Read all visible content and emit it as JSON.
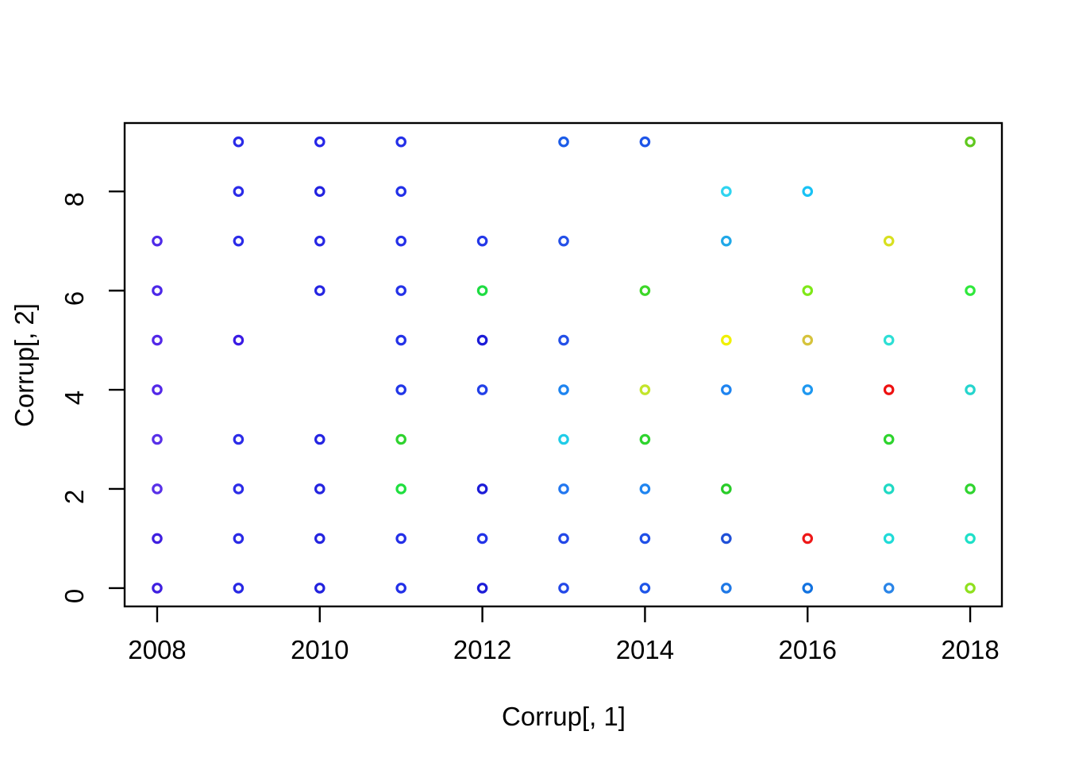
{
  "chart_data": {
    "type": "scatter",
    "title": "",
    "xlabel": "Corrup[, 1]",
    "ylabel": "Corrup[, 2]",
    "marker": "open-circle",
    "grid": "off",
    "legend": "none",
    "xlim": [
      2007.6,
      2018.39
    ],
    "ylim": [
      -0.37,
      9.38
    ],
    "x_ticks": [
      2008,
      2010,
      2012,
      2014,
      2016,
      2018
    ],
    "y_ticks": [
      0,
      2,
      4,
      6,
      8
    ],
    "points": [
      {
        "x": 2009,
        "y": 9,
        "color": "#2B2BE8"
      },
      {
        "x": 2010,
        "y": 9,
        "color": "#2626E8"
      },
      {
        "x": 2011,
        "y": 9,
        "color": "#2430E8"
      },
      {
        "x": 2013,
        "y": 9,
        "color": "#1C5CE8"
      },
      {
        "x": 2014,
        "y": 9,
        "color": "#1E55E8"
      },
      {
        "x": 2018,
        "y": 9,
        "color": "#5FC81E"
      },
      {
        "x": 2009,
        "y": 8,
        "color": "#2B2BE8"
      },
      {
        "x": 2010,
        "y": 8,
        "color": "#2222E0"
      },
      {
        "x": 2011,
        "y": 8,
        "color": "#2230E8"
      },
      {
        "x": 2015,
        "y": 8,
        "color": "#2FD4F0"
      },
      {
        "x": 2016,
        "y": 8,
        "color": "#18C2F5"
      },
      {
        "x": 2008,
        "y": 7,
        "color": "#4F2BE8"
      },
      {
        "x": 2009,
        "y": 7,
        "color": "#2B2BE8"
      },
      {
        "x": 2010,
        "y": 7,
        "color": "#2727E4"
      },
      {
        "x": 2011,
        "y": 7,
        "color": "#2530E8"
      },
      {
        "x": 2012,
        "y": 7,
        "color": "#2438E8"
      },
      {
        "x": 2013,
        "y": 7,
        "color": "#2450E8"
      },
      {
        "x": 2015,
        "y": 7,
        "color": "#20A8E8"
      },
      {
        "x": 2017,
        "y": 7,
        "color": "#D8E020"
      },
      {
        "x": 2008,
        "y": 6,
        "color": "#4C28E8"
      },
      {
        "x": 2010,
        "y": 6,
        "color": "#2525E2"
      },
      {
        "x": 2011,
        "y": 6,
        "color": "#2432E8"
      },
      {
        "x": 2012,
        "y": 6,
        "color": "#1EDC42"
      },
      {
        "x": 2014,
        "y": 6,
        "color": "#3CD728"
      },
      {
        "x": 2016,
        "y": 6,
        "color": "#7FE818"
      },
      {
        "x": 2018,
        "y": 6,
        "color": "#2FE83C"
      },
      {
        "x": 2008,
        "y": 5,
        "color": "#5328E8"
      },
      {
        "x": 2009,
        "y": 5,
        "color": "#3A1BE4"
      },
      {
        "x": 2011,
        "y": 5,
        "color": "#2432E8"
      },
      {
        "x": 2012,
        "y": 5,
        "color": "#1C1CD8"
      },
      {
        "x": 2013,
        "y": 5,
        "color": "#2450E8"
      },
      {
        "x": 2015,
        "y": 5,
        "color": "#F0F000"
      },
      {
        "x": 2016,
        "y": 5,
        "color": "#D6C33C"
      },
      {
        "x": 2017,
        "y": 5,
        "color": "#2EDFD5"
      },
      {
        "x": 2008,
        "y": 4,
        "color": "#5328E8"
      },
      {
        "x": 2011,
        "y": 4,
        "color": "#2136E8"
      },
      {
        "x": 2012,
        "y": 4,
        "color": "#2240E8"
      },
      {
        "x": 2013,
        "y": 4,
        "color": "#1E84F0"
      },
      {
        "x": 2014,
        "y": 4,
        "color": "#C3E52A"
      },
      {
        "x": 2015,
        "y": 4,
        "color": "#1E84F0"
      },
      {
        "x": 2016,
        "y": 4,
        "color": "#1E98F0"
      },
      {
        "x": 2017,
        "y": 4,
        "color": "#EE1111"
      },
      {
        "x": 2018,
        "y": 4,
        "color": "#25D5CD"
      },
      {
        "x": 2008,
        "y": 3,
        "color": "#5830E8"
      },
      {
        "x": 2009,
        "y": 3,
        "color": "#2C2CE8"
      },
      {
        "x": 2010,
        "y": 3,
        "color": "#2525E2"
      },
      {
        "x": 2011,
        "y": 3,
        "color": "#2FD32F"
      },
      {
        "x": 2013,
        "y": 3,
        "color": "#20CCE8"
      },
      {
        "x": 2014,
        "y": 3,
        "color": "#2ED42E"
      },
      {
        "x": 2017,
        "y": 3,
        "color": "#2ED42E"
      },
      {
        "x": 2008,
        "y": 2,
        "color": "#5830E8"
      },
      {
        "x": 2009,
        "y": 2,
        "color": "#2C2CE8"
      },
      {
        "x": 2010,
        "y": 2,
        "color": "#2424E0"
      },
      {
        "x": 2011,
        "y": 2,
        "color": "#1FDF3F"
      },
      {
        "x": 2012,
        "y": 2,
        "color": "#1C1CD8"
      },
      {
        "x": 2013,
        "y": 2,
        "color": "#2277F0"
      },
      {
        "x": 2014,
        "y": 2,
        "color": "#2085F0"
      },
      {
        "x": 2015,
        "y": 2,
        "color": "#28CC28"
      },
      {
        "x": 2017,
        "y": 2,
        "color": "#20D9C4"
      },
      {
        "x": 2018,
        "y": 2,
        "color": "#2FD42F"
      },
      {
        "x": 2008,
        "y": 1,
        "color": "#3F1FE0"
      },
      {
        "x": 2009,
        "y": 1,
        "color": "#2A2AE6"
      },
      {
        "x": 2010,
        "y": 1,
        "color": "#2424E0"
      },
      {
        "x": 2011,
        "y": 1,
        "color": "#2430E8"
      },
      {
        "x": 2012,
        "y": 1,
        "color": "#2233E8"
      },
      {
        "x": 2013,
        "y": 1,
        "color": "#2348E8"
      },
      {
        "x": 2014,
        "y": 1,
        "color": "#2050E8"
      },
      {
        "x": 2015,
        "y": 1,
        "color": "#2050D8"
      },
      {
        "x": 2016,
        "y": 1,
        "color": "#EE1818"
      },
      {
        "x": 2017,
        "y": 1,
        "color": "#20DBD8"
      },
      {
        "x": 2018,
        "y": 1,
        "color": "#1EE0C8"
      },
      {
        "x": 2008,
        "y": 0,
        "color": "#3F1FE0"
      },
      {
        "x": 2009,
        "y": 0,
        "color": "#2828E4"
      },
      {
        "x": 2010,
        "y": 0,
        "color": "#2222DE"
      },
      {
        "x": 2011,
        "y": 0,
        "color": "#2230E8"
      },
      {
        "x": 2012,
        "y": 0,
        "color": "#1C1CD8"
      },
      {
        "x": 2013,
        "y": 0,
        "color": "#2348E8"
      },
      {
        "x": 2014,
        "y": 0,
        "color": "#1E55E8"
      },
      {
        "x": 2015,
        "y": 0,
        "color": "#1E78E6"
      },
      {
        "x": 2016,
        "y": 0,
        "color": "#1272E0"
      },
      {
        "x": 2017,
        "y": 0,
        "color": "#2A85E8"
      },
      {
        "x": 2018,
        "y": 0,
        "color": "#8FE01E"
      }
    ]
  }
}
